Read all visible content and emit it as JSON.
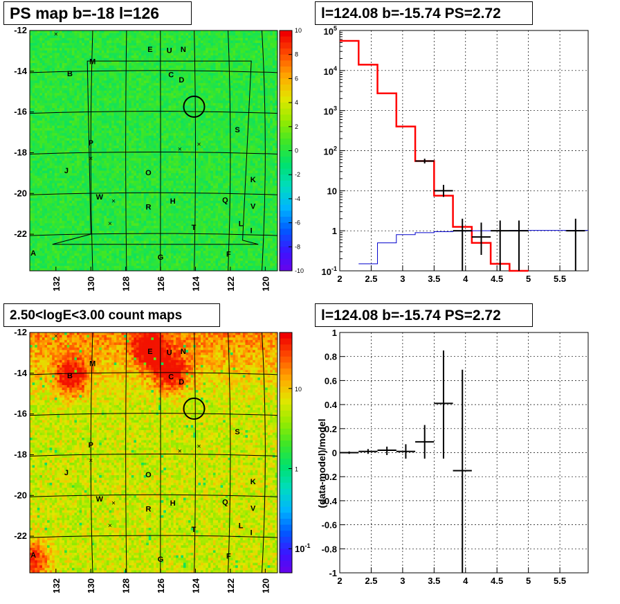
{
  "panels": {
    "tl": {
      "title": "PS map b=-18 l=126"
    },
    "tr": {
      "title": "l=124.08 b=-15.74 PS=2.72"
    },
    "bl": {
      "title": "2.50<logE<3.00 count maps"
    },
    "br": {
      "title": "l=124.08 b=-15.74 PS=2.72"
    }
  },
  "chart_data": [
    {
      "id": "ps_map",
      "type": "heatmap",
      "title": "PS map b=-18 l=126",
      "xlabel": "",
      "ylabel": "",
      "xlim": [
        133.5,
        119.3
      ],
      "ylim": [
        -23.8,
        -12
      ],
      "x_ticks": [
        132,
        130,
        128,
        126,
        124,
        122,
        120
      ],
      "y_ticks": [
        -12,
        -14,
        -16,
        -18,
        -20,
        -22
      ],
      "colorbar": {
        "min": -10,
        "max": 10,
        "ticks": [
          -10,
          -8,
          -6,
          -4,
          -2,
          0,
          2,
          4,
          6,
          8,
          10
        ]
      },
      "circle": {
        "l": 124.08,
        "b": -15.74,
        "r": 0.5
      },
      "sources": [
        {
          "name": "E",
          "l": 126.6,
          "b": -12.95
        },
        {
          "name": "U",
          "l": 125.5,
          "b": -13.0
        },
        {
          "name": "N",
          "l": 124.7,
          "b": -12.95
        },
        {
          "name": "M",
          "l": 129.9,
          "b": -13.55
        },
        {
          "name": "C",
          "l": 125.4,
          "b": -14.2
        },
        {
          "name": "D",
          "l": 124.8,
          "b": -14.45
        },
        {
          "name": "B",
          "l": 131.2,
          "b": -14.15
        },
        {
          "name": "S",
          "l": 121.6,
          "b": -16.9
        },
        {
          "name": "P",
          "l": 130.0,
          "b": -17.55
        },
        {
          "name": "J",
          "l": 131.4,
          "b": -18.9
        },
        {
          "name": "O",
          "l": 126.7,
          "b": -19.0
        },
        {
          "name": "K",
          "l": 120.7,
          "b": -19.35
        },
        {
          "name": "W",
          "l": 129.5,
          "b": -20.2
        },
        {
          "name": "H",
          "l": 125.3,
          "b": -20.4
        },
        {
          "name": "Q",
          "l": 122.3,
          "b": -20.35
        },
        {
          "name": "R",
          "l": 126.7,
          "b": -20.7
        },
        {
          "name": "V",
          "l": 120.7,
          "b": -20.65
        },
        {
          "name": "L",
          "l": 121.4,
          "b": -21.5
        },
        {
          "name": "T",
          "l": 124.1,
          "b": -21.7
        },
        {
          "name": "I",
          "l": 120.8,
          "b": -21.85
        },
        {
          "name": "A",
          "l": 133.3,
          "b": -22.95
        },
        {
          "name": "G",
          "l": 126.0,
          "b": -23.15
        },
        {
          "name": "F",
          "l": 122.1,
          "b": -23.0
        }
      ],
      "markers": [
        {
          "l": 132.0,
          "b": -12.2
        },
        {
          "l": 130.0,
          "b": -18.3
        },
        {
          "l": 128.7,
          "b": -20.4
        },
        {
          "l": 128.9,
          "b": -21.5
        },
        {
          "l": 124.9,
          "b": -17.85
        },
        {
          "l": 123.8,
          "b": -17.6
        }
      ]
    },
    {
      "id": "spectrum",
      "type": "line",
      "title": "l=124.08 b=-15.74 PS=2.72",
      "xlabel": "",
      "ylabel": "",
      "xlim": [
        2,
        5.95
      ],
      "ylim": [
        0.1,
        100000
      ],
      "yscale": "log",
      "x_ticks": [
        2,
        2.5,
        3,
        3.5,
        4,
        4.5,
        5,
        5.5
      ],
      "y_ticks": [
        0.1,
        1,
        10,
        100,
        1000,
        10000,
        100000
      ],
      "y_tick_labels": [
        "10^-1",
        "1",
        "10",
        "10^2",
        "10^3",
        "10^4",
        "10^5"
      ],
      "grid": true,
      "series": [
        {
          "color": "#ff0000",
          "kind": "step",
          "edges": [
            2.0,
            2.3,
            2.6,
            2.9,
            3.2,
            3.5,
            3.8,
            4.1,
            4.4,
            4.7,
            5.0
          ],
          "values": [
            55000,
            14000,
            2700,
            400,
            55,
            7.5,
            1.25,
            0.5,
            0.15,
            0.1
          ]
        },
        {
          "color": "#0000cc",
          "kind": "step",
          "edges": [
            2.3,
            2.6,
            2.9,
            3.2,
            3.5,
            3.8,
            4.1,
            4.4,
            4.7,
            5.0,
            5.95
          ],
          "values": [
            0.15,
            0.5,
            0.8,
            0.9,
            0.95,
            0.98,
            1.0,
            1.0,
            1.02,
            1.02
          ]
        },
        {
          "color": "#000000",
          "kind": "errorbar",
          "points": [
            {
              "x": 3.35,
              "y": 55,
              "xerr": 0.15,
              "ylo": 48,
              "yhi": 63
            },
            {
              "x": 3.65,
              "y": 10,
              "xerr": 0.15,
              "ylo": 7,
              "yhi": 14
            },
            {
              "x": 3.95,
              "y": 1.0,
              "xerr": 0.15,
              "ylo": 0.1,
              "yhi": 2.0
            },
            {
              "x": 4.25,
              "y": 0.7,
              "xerr": 0.15,
              "ylo": 0.25,
              "yhi": 1.6
            },
            {
              "x": 4.55,
              "y": 1.0,
              "xerr": 0.15,
              "ylo": 0.1,
              "yhi": 1.8
            },
            {
              "x": 4.85,
              "y": 1.0,
              "xerr": 0.15,
              "ylo": 0.1,
              "yhi": 1.8
            },
            {
              "x": 5.75,
              "y": 1.0,
              "xerr": 0.15,
              "ylo": 0.1,
              "yhi": 2.0
            }
          ]
        }
      ]
    },
    {
      "id": "count_map",
      "type": "heatmap",
      "title": "2.50<logE<3.00 count maps",
      "xlabel": "",
      "ylabel": "",
      "xlim": [
        133.5,
        119.3
      ],
      "ylim": [
        -23.8,
        -12
      ],
      "x_ticks": [
        132,
        130,
        128,
        126,
        124,
        122,
        120
      ],
      "y_ticks": [
        -12,
        -14,
        -16,
        -18,
        -20,
        -22
      ],
      "colorbar": {
        "scale": "log",
        "min": 0.05,
        "max": 50,
        "ticks": [
          0.1,
          1,
          10
        ],
        "tick_labels": [
          "10^-1",
          "1",
          "10"
        ]
      },
      "hotspots": [
        {
          "name": "B",
          "l": 131.1,
          "b": -14.2
        },
        {
          "name": "E",
          "l": 126.6,
          "b": -12.8
        },
        {
          "name": "C",
          "l": 125.4,
          "b": -14.0
        },
        {
          "name": "A",
          "l": 133.3,
          "b": -23.2
        }
      ]
    },
    {
      "id": "residuals",
      "type": "scatter",
      "title": "l=124.08 b=-15.74 PS=2.72",
      "xlabel": "",
      "ylabel": "(data-model)/model",
      "xlim": [
        2,
        5.95
      ],
      "ylim": [
        -1,
        1
      ],
      "x_ticks": [
        2,
        2.5,
        3,
        3.5,
        4,
        4.5,
        5,
        5.5
      ],
      "y_ticks": [
        -1,
        -0.8,
        -0.6,
        -0.4,
        -0.2,
        0,
        0.2,
        0.4,
        0.6,
        0.8,
        1
      ],
      "grid": true,
      "points": [
        {
          "x": 2.15,
          "y": 0.0,
          "xerr": 0.15,
          "ylo": -0.01,
          "yhi": 0.01
        },
        {
          "x": 2.45,
          "y": 0.01,
          "xerr": 0.15,
          "ylo": -0.01,
          "yhi": 0.03
        },
        {
          "x": 2.75,
          "y": 0.02,
          "xerr": 0.15,
          "ylo": -0.02,
          "yhi": 0.05
        },
        {
          "x": 3.05,
          "y": 0.01,
          "xerr": 0.15,
          "ylo": -0.05,
          "yhi": 0.07
        },
        {
          "x": 3.35,
          "y": 0.09,
          "xerr": 0.15,
          "ylo": -0.05,
          "yhi": 0.23
        },
        {
          "x": 3.65,
          "y": 0.41,
          "xerr": 0.15,
          "ylo": -0.05,
          "yhi": 0.85
        },
        {
          "x": 3.95,
          "y": -0.15,
          "xerr": 0.15,
          "ylo": -1.0,
          "yhi": 0.69
        }
      ]
    }
  ]
}
